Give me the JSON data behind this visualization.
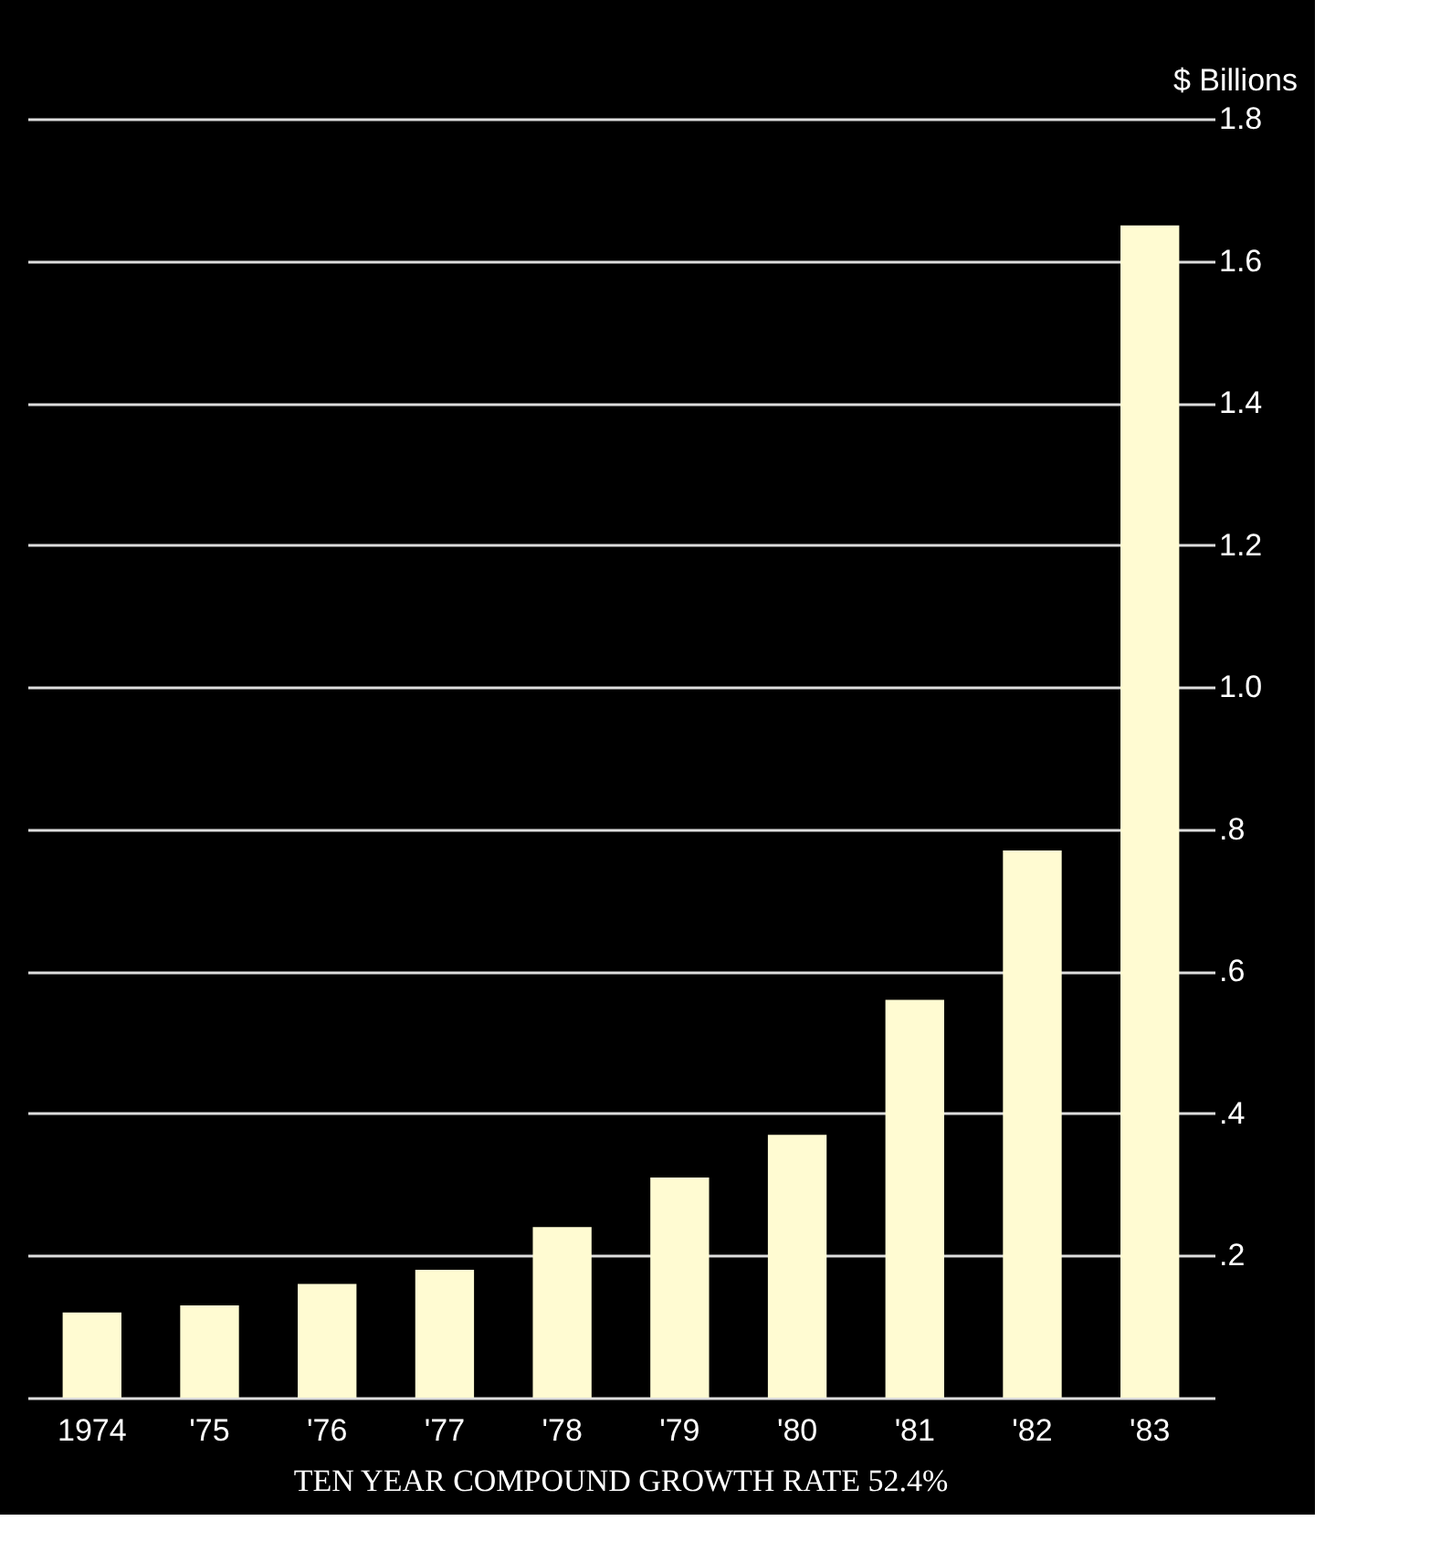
{
  "chart_data": {
    "type": "bar",
    "ylabel": "$ Billions",
    "annotations": [
      "TEN YEAR COMPOUND GROWTH RATE 52.4%"
    ],
    "categories": [
      "1974",
      "'75",
      "'76",
      "'77",
      "'78",
      "'79",
      "'80",
      "'81",
      "'82",
      "'83"
    ],
    "values": [
      0.12,
      0.13,
      0.16,
      0.18,
      0.24,
      0.31,
      0.37,
      0.56,
      0.77,
      1.65
    ],
    "color": "#fffbd2",
    "ylim": [
      0,
      1.8
    ],
    "yticks": [
      {
        "value": 0,
        "label": null
      },
      {
        "value": 0.2,
        "label": ".2"
      },
      {
        "value": 0.4,
        "label": ".4"
      },
      {
        "value": 0.6,
        "label": ".6"
      },
      {
        "value": 0.8,
        "label": ".8"
      },
      {
        "value": 1.0,
        "label": "1.0"
      },
      1.2,
      1.4,
      1.6,
      1.8
    ],
    "grid": "y"
  }
}
